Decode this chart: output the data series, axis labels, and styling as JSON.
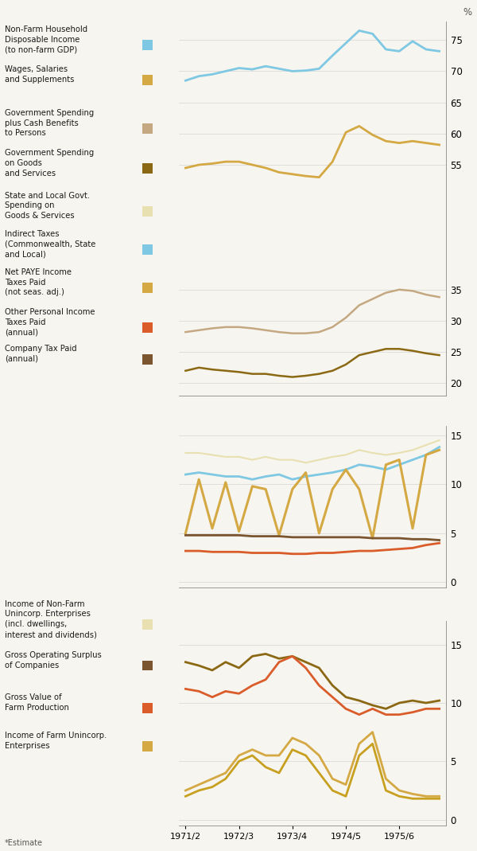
{
  "background_color": "#f7f5ef",
  "footnote": "*Estimate",
  "panel1": {
    "ylim": [
      18,
      78
    ],
    "yticks": [
      20,
      25,
      30,
      35,
      55,
      60,
      65,
      70,
      75
    ],
    "series": [
      {
        "color": "#7ec8e3",
        "lw": 2.0,
        "data": [
          68.5,
          69.2,
          69.5,
          70.0,
          70.5,
          70.3,
          70.8,
          70.4,
          70.0,
          70.1,
          70.4,
          72.5,
          74.5,
          76.5,
          76.0,
          73.5,
          73.2,
          74.8,
          73.5,
          73.2
        ]
      },
      {
        "color": "#d4a843",
        "lw": 2.0,
        "data": [
          54.5,
          55.0,
          55.2,
          55.5,
          55.5,
          55.0,
          54.5,
          53.8,
          53.5,
          53.2,
          53.0,
          55.5,
          60.2,
          61.2,
          59.8,
          58.8,
          58.5,
          58.8,
          58.5,
          58.2
        ]
      },
      {
        "color": "#c4a882",
        "lw": 1.8,
        "data": [
          28.2,
          28.5,
          28.8,
          29.0,
          29.0,
          28.8,
          28.5,
          28.2,
          28.0,
          28.0,
          28.2,
          29.0,
          30.5,
          32.5,
          33.5,
          34.5,
          35.0,
          34.8,
          34.2,
          33.8
        ]
      },
      {
        "color": "#8b6914",
        "lw": 1.8,
        "data": [
          22.0,
          22.5,
          22.2,
          22.0,
          21.8,
          21.5,
          21.5,
          21.2,
          21.0,
          21.2,
          21.5,
          22.0,
          23.0,
          24.5,
          25.0,
          25.5,
          25.5,
          25.2,
          24.8,
          24.5
        ]
      }
    ]
  },
  "panel2": {
    "ylim": [
      -0.5,
      16
    ],
    "yticks": [
      0,
      5,
      10,
      15
    ],
    "series": [
      {
        "color": "#e8e0b0",
        "lw": 1.5,
        "data": [
          13.2,
          13.2,
          13.0,
          12.8,
          12.8,
          12.5,
          12.8,
          12.5,
          12.5,
          12.2,
          12.5,
          12.8,
          13.0,
          13.5,
          13.2,
          13.0,
          13.2,
          13.5,
          14.0,
          14.5
        ]
      },
      {
        "color": "#7ec8e3",
        "lw": 2.0,
        "data": [
          11.0,
          11.2,
          11.0,
          10.8,
          10.8,
          10.5,
          10.8,
          11.0,
          10.5,
          10.8,
          11.0,
          11.2,
          11.5,
          12.0,
          11.8,
          11.5,
          12.0,
          12.5,
          13.0,
          13.8
        ]
      },
      {
        "color": "#d4a843",
        "lw": 2.2,
        "data": [
          5.0,
          10.5,
          5.5,
          10.2,
          5.2,
          9.8,
          9.5,
          4.8,
          9.5,
          11.2,
          5.0,
          9.5,
          11.5,
          9.5,
          4.5,
          12.0,
          12.5,
          5.5,
          13.0,
          13.5
        ]
      },
      {
        "color": "#7a5530",
        "lw": 2.0,
        "data": [
          4.8,
          4.8,
          4.8,
          4.8,
          4.8,
          4.7,
          4.7,
          4.7,
          4.6,
          4.6,
          4.6,
          4.6,
          4.6,
          4.6,
          4.5,
          4.5,
          4.5,
          4.4,
          4.4,
          4.3
        ]
      },
      {
        "color": "#d95c2a",
        "lw": 2.0,
        "data": [
          3.2,
          3.2,
          3.1,
          3.1,
          3.1,
          3.0,
          3.0,
          3.0,
          2.9,
          2.9,
          3.0,
          3.0,
          3.1,
          3.2,
          3.2,
          3.3,
          3.4,
          3.5,
          3.8,
          4.0
        ]
      }
    ]
  },
  "panel3": {
    "ylim": [
      -0.5,
      17
    ],
    "yticks": [
      0,
      5,
      10,
      15
    ],
    "series": [
      {
        "color": "#8b6914",
        "lw": 2.0,
        "data": [
          13.5,
          13.2,
          12.8,
          13.5,
          13.0,
          14.0,
          14.2,
          13.8,
          14.0,
          13.5,
          13.0,
          11.5,
          10.5,
          10.2,
          9.8,
          9.5,
          10.0,
          10.2,
          10.0,
          10.2
        ]
      },
      {
        "color": "#d95c2a",
        "lw": 2.0,
        "data": [
          11.2,
          11.0,
          10.5,
          11.0,
          10.8,
          11.5,
          12.0,
          13.5,
          14.0,
          13.0,
          11.5,
          10.5,
          9.5,
          9.0,
          9.5,
          9.0,
          9.0,
          9.2,
          9.5,
          9.5
        ]
      },
      {
        "color": "#d4a843",
        "lw": 2.0,
        "data": [
          2.5,
          3.0,
          3.5,
          4.0,
          5.5,
          6.0,
          5.5,
          5.5,
          7.0,
          6.5,
          5.5,
          3.5,
          3.0,
          6.5,
          7.5,
          3.5,
          2.5,
          2.2,
          2.0,
          2.0
        ]
      },
      {
        "color": "#c8a020",
        "lw": 2.0,
        "data": [
          2.0,
          2.5,
          2.8,
          3.5,
          5.0,
          5.5,
          4.5,
          4.0,
          6.0,
          5.5,
          4.0,
          2.5,
          2.0,
          5.5,
          6.5,
          2.5,
          2.0,
          1.8,
          1.8,
          1.8
        ]
      }
    ]
  },
  "legend_top": [
    {
      "label": "Non-Farm Household\nDisposable Income\n(to non-farm GDP)",
      "color": "#7ec8e3"
    },
    {
      "label": "Wages, Salaries\nand Supplements",
      "color": "#d4a843"
    },
    {
      "label": "Government Spending\nplus Cash Benefits\nto Persons",
      "color": "#c4a882"
    },
    {
      "label": "Government Spending\non Goods\nand Services",
      "color": "#8b6914"
    },
    {
      "label": "State and Local Govt.\nSpending on\nGoods & Services",
      "color": "#e8e0b0"
    },
    {
      "label": "Indirect Taxes\n(Commonwealth, State\nand Local)",
      "color": "#7ec8e3"
    },
    {
      "label": "Net PAYE Income\nTaxes Paid\n(not seas. adj.)",
      "color": "#d4a843"
    },
    {
      "label": "Other Personal Income\nTaxes Paid\n(annual)",
      "color": "#d95c2a"
    },
    {
      "label": "Company Tax Paid\n(annual)",
      "color": "#7a5530"
    }
  ],
  "legend_bottom": [
    {
      "label": "Income of Non-Farm\nUnincorp. Enterprises\n(incl. dwellings,\ninterest and dividends)",
      "color": "#e8e0b0"
    },
    {
      "label": "Gross Operating Surplus\nof Companies",
      "color": "#7a5530"
    },
    {
      "label": "Gross Value of\nFarm Production",
      "color": "#d95c2a"
    },
    {
      "label": "Income of Farm Unincorp.\nEnterprises",
      "color": "#d4a843"
    }
  ],
  "x_ticks": [
    0,
    4,
    8,
    12,
    16
  ],
  "x_labels": [
    "1971/2",
    "1972/3",
    "1973/4",
    "1974/5",
    "1975/6"
  ]
}
